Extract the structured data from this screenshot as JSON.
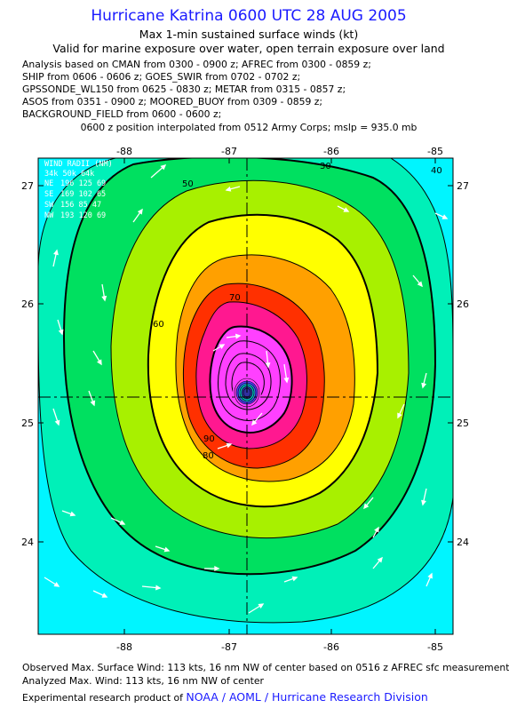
{
  "header": {
    "title": "Hurricane Katrina 0600 UTC 28 AUG 2005",
    "subtitle1": "Max 1-min sustained surface winds (kt)",
    "subtitle2": "Valid for marine exposure over water, open terrain exposure over land"
  },
  "analysis": {
    "line1": "Analysis based on  CMAN from 0300 - 0900 z;  AFREC from 0300 - 0859 z;",
    "line2": "SHIP from 0606 - 0606 z;  GOES_SWIR from 0702 - 0702 z;",
    "line3": "GPSSONDE_WL150 from 0625 - 0830 z;  METAR from 0315 - 0857 z;",
    "line4": "ASOS from 0351 - 0900 z;  MOORED_BUOY from 0309 - 0859 z;",
    "line5": "BACKGROUND_FIELD from 0600 - 0600 z;",
    "position": "0600 z position interpolated from 0512 Army Corps; mslp = 935.0 mb"
  },
  "map": {
    "lon_ticks": [
      "-88",
      "-87",
      "-86",
      "-85"
    ],
    "lat_ticks": [
      "27",
      "26",
      "25",
      "24"
    ],
    "lon_range": [
      -88.7,
      -84.8
    ],
    "lat_range": [
      23.3,
      27.25
    ],
    "center": {
      "lon": -86.8,
      "lat": 25.23
    },
    "contour_labels": [
      "30",
      "40",
      "50",
      "60",
      "70",
      "80",
      "90"
    ],
    "legend": {
      "header": "WIND RADII (NM)",
      "cols": "34k  50k  64k",
      "rows": [
        {
          "quad": "NE",
          "vals": "196  125   69"
        },
        {
          "quad": "SE",
          "vals": "169  102   65"
        },
        {
          "quad": "SW",
          "vals": "156   85   47"
        },
        {
          "quad": "NW",
          "vals": "193  120   69"
        }
      ]
    },
    "colors": {
      "w30": "#00f5ff",
      "w40": "#00f0b8",
      "w50": "#00e060",
      "w60": "#a8f000",
      "w70": "#ffff00",
      "w80": "#ffa000",
      "w90": "#ff3000",
      "w100": "#ff1890",
      "w110": "#ff40ff",
      "core": "#5040ff"
    }
  },
  "footer": {
    "line1": "Observed Max. Surface Wind: 113 kts, 16 nm NW of center based on 0516 z AFREC sfc measurement",
    "line2": "Analyzed Max. Wind: 113 kts, 16 nm NW of center",
    "line3_prefix": "Experimental research product of ",
    "line3_org": "NOAA / AOML / Hurricane Research Division"
  }
}
